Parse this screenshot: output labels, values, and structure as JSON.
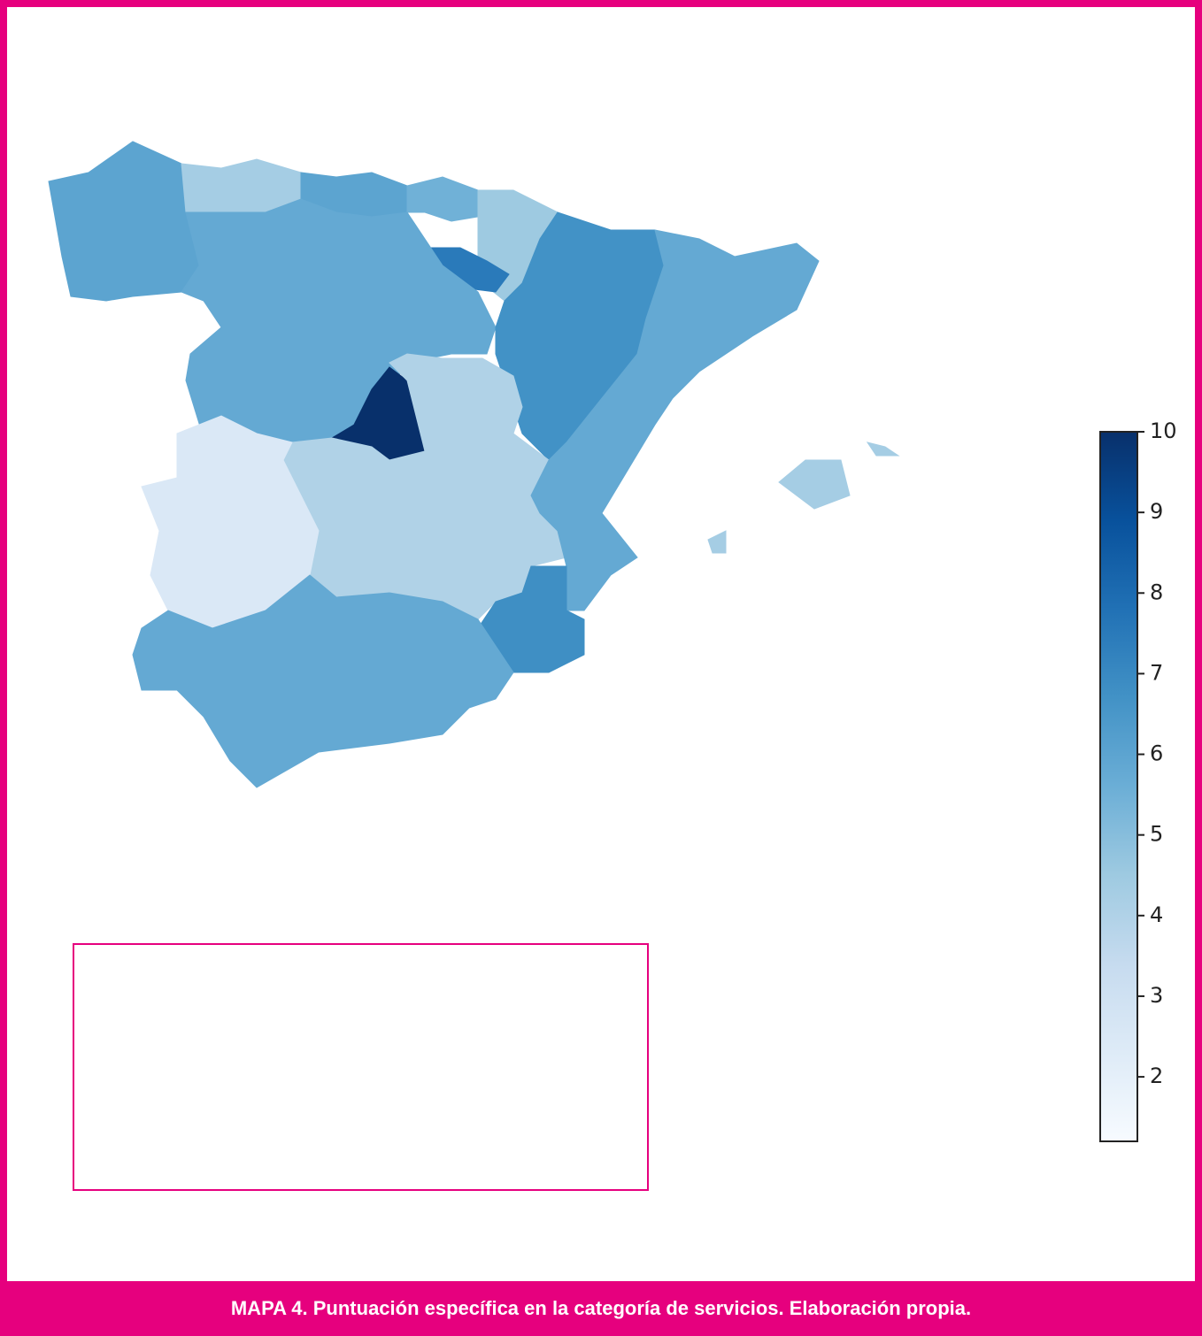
{
  "chart_data": {
    "type": "choropleth",
    "colormap": "Blues",
    "values": [
      6.0,
      4.3,
      6.0,
      5.5,
      4.5,
      7.5,
      5.8,
      6.7,
      5.8,
      10.0,
      4.0,
      2.5,
      5.8,
      6.8,
      5.8,
      4.3
    ],
    "colorbar": {
      "lim": [
        1.2,
        10
      ],
      "ticks": [
        2,
        3,
        4,
        5,
        6,
        7,
        8,
        9,
        10
      ]
    },
    "caption": "MAPA 4. Puntuación específica en la categoría de servicios. Elaboración propia."
  }
}
